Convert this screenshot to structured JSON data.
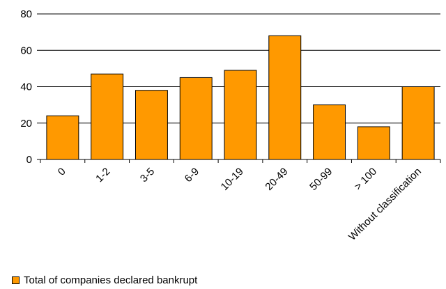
{
  "chart_data": {
    "type": "bar",
    "categories": [
      "0",
      "1-2",
      "3-5",
      "6-9",
      "10-19",
      "20-49",
      "50-99",
      "> 100",
      "Without classification"
    ],
    "series": [
      {
        "name": "Total of companies declared bankrupt",
        "values": [
          24,
          47,
          38,
          45,
          49,
          68,
          30,
          18,
          40
        ]
      }
    ],
    "ylim": [
      0,
      80
    ],
    "yticks": [
      "0",
      "20",
      "40",
      "60",
      "80"
    ],
    "grid": true,
    "legend": "bottom-left",
    "colors": {
      "bar": "#ff9900",
      "bar_border": "#000000",
      "grid": "#000000"
    }
  }
}
